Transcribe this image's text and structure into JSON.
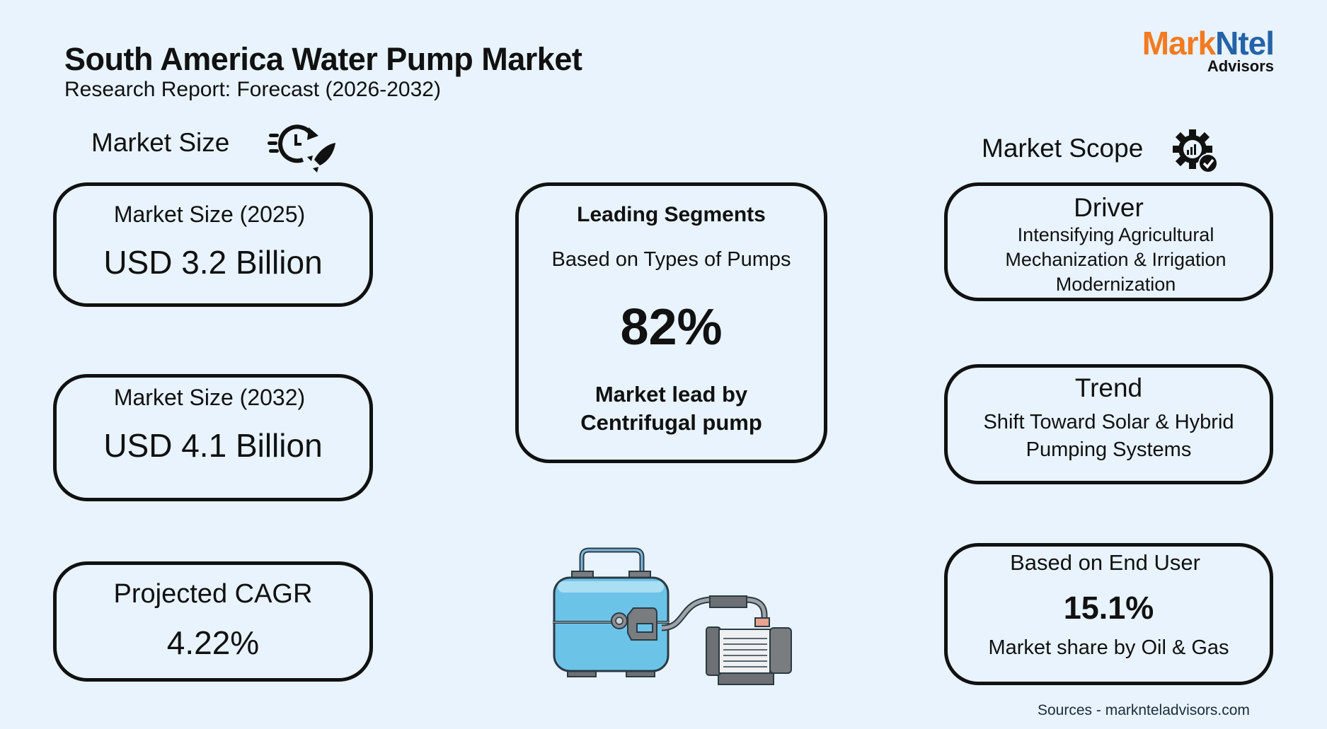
{
  "header": {
    "title": "South America Water Pump Market",
    "subtitle": "Research Report: Forecast (2026-2032)"
  },
  "logo": {
    "part1": "Mark",
    "part2": "Ntel",
    "part3": "Advisors",
    "colors": {
      "mark": "#f47a20",
      "ntel": "#2563a8"
    }
  },
  "market_size": {
    "heading": "Market Size",
    "icon": "clock-rocket-icon",
    "cards": [
      {
        "label": "Market Size (2025)",
        "value": "USD 3.2 Billion"
      },
      {
        "label": "Market Size (2032)",
        "value": "USD 4.1 Billion"
      },
      {
        "label": "Projected CAGR",
        "value": "4.22%"
      }
    ]
  },
  "leading_segments": {
    "title": "Leading Segments",
    "basis": "Based on Types of Pumps",
    "value": "82%",
    "caption_line1": "Market lead by",
    "caption_line2": "Centrifugal pump"
  },
  "market_scope": {
    "heading": "Market Scope",
    "icon": "gear-chart-check-icon",
    "driver": {
      "title": "Driver",
      "lines": [
        "Intensifying Agricultural",
        "Mechanization & Irrigation",
        "Modernization"
      ]
    },
    "trend": {
      "title": "Trend",
      "lines": [
        "Shift Toward Solar & Hybrid",
        "Pumping Systems"
      ]
    },
    "end_user": {
      "title": "Based on End User",
      "value": "15.1%",
      "caption": "Market share by Oil & Gas"
    }
  },
  "footer": {
    "sources": "Sources - marknteladvisors.com"
  },
  "illustration": "water-pump-illustration"
}
